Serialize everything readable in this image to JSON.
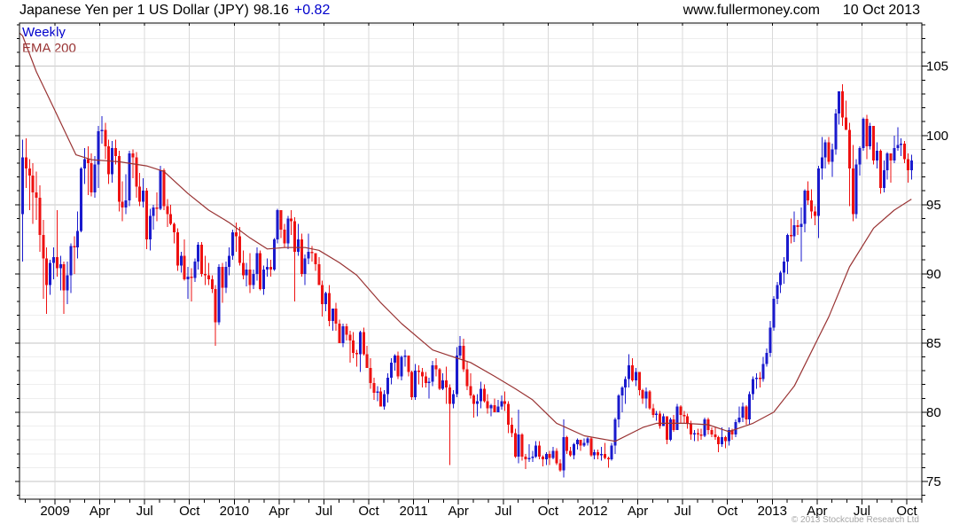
{
  "header": {
    "instrument": "Japanese Yen per 1 US Dollar (JPY)",
    "last_price": "98.16",
    "change": "+0.82",
    "site": "www.fullermoney.com",
    "date": "10 Oct 2013"
  },
  "legend": {
    "timeframe": "Weekly",
    "indicator": "EMA 200"
  },
  "footer": {
    "copyright": "© 2013 Stockcube Research Ltd"
  },
  "colors": {
    "up_candle": "#1a1acd",
    "down_candle": "#ee1111",
    "ema_line": "#993333",
    "change_text": "#0000cc",
    "grid_major": "#c6c6c6",
    "grid_minor": "#eeeeee",
    "grid_vertical": "#d9d9d9",
    "axis": "#000000",
    "copyright_gray": "#a6a6a6"
  },
  "chart_data": {
    "type": "candlestick+line",
    "title": "Japanese Yen per 1 US Dollar (JPY)",
    "timeframe": "Weekly",
    "period_start": "late Oct 2008",
    "period_end": "10 Oct 2013",
    "y_axis": {
      "ticks": [
        75,
        80,
        85,
        90,
        95,
        100,
        105
      ],
      "minor_step": 1,
      "range": [
        73.7,
        108.1
      ],
      "side": "right"
    },
    "x_axis": {
      "labels": [
        "2009",
        "Apr",
        "Jul",
        "Oct",
        "2010",
        "Apr",
        "Jul",
        "Oct",
        "2011",
        "Apr",
        "Jul",
        "Oct",
        "2012",
        "Apr",
        "Jul",
        "Oct",
        "2013",
        "Apr",
        "Jul",
        "Oct"
      ]
    },
    "legend_entries": [
      "Weekly",
      "EMA 200"
    ],
    "first_open": 94.3,
    "candles_hlc": [
      [
        99.7,
        90.9,
        98.4
      ],
      [
        99.8,
        96.2,
        97.6
      ],
      [
        98.3,
        94.6,
        97.1
      ],
      [
        98.0,
        93.6,
        95.9
      ],
      [
        97.4,
        93.9,
        95.5
      ],
      [
        96.4,
        91.6,
        92.8
      ],
      [
        93.9,
        88.2,
        91.1
      ],
      [
        91.9,
        87.1,
        89.2
      ],
      [
        91.0,
        88.5,
        90.8
      ],
      [
        91.9,
        89.6,
        91.2
      ],
      [
        94.6,
        89.8,
        90.4
      ],
      [
        91.3,
        88.8,
        90.7
      ],
      [
        90.9,
        87.1,
        88.8
      ],
      [
        90.9,
        87.8,
        89.9
      ],
      [
        92.2,
        88.6,
        92.0
      ],
      [
        92.7,
        90.0,
        91.9
      ],
      [
        94.5,
        91.1,
        93.1
      ],
      [
        97.7,
        93.0,
        97.6
      ],
      [
        99.1,
        96.5,
        98.3
      ],
      [
        99.2,
        95.7,
        98.0
      ],
      [
        98.7,
        95.6,
        95.9
      ],
      [
        98.5,
        95.5,
        97.9
      ],
      [
        100.7,
        96.2,
        100.3
      ],
      [
        101.4,
        99.4,
        100.4
      ],
      [
        100.9,
        98.3,
        99.2
      ],
      [
        99.7,
        96.5,
        97.2
      ],
      [
        99.6,
        96.6,
        99.1
      ],
      [
        99.7,
        97.9,
        98.5
      ],
      [
        98.9,
        94.5,
        95.2
      ],
      [
        96.7,
        93.8,
        94.8
      ],
      [
        97.2,
        94.3,
        95.3
      ],
      [
        98.9,
        94.9,
        98.7
      ],
      [
        99.0,
        96.9,
        98.4
      ],
      [
        98.8,
        95.5,
        96.3
      ],
      [
        97.3,
        94.9,
        95.2
      ],
      [
        96.9,
        94.8,
        96.0
      ],
      [
        96.2,
        91.8,
        92.5
      ],
      [
        94.7,
        91.7,
        94.2
      ],
      [
        95.0,
        93.2,
        94.8
      ],
      [
        95.9,
        93.8,
        94.7
      ],
      [
        97.8,
        94.6,
        97.5
      ],
      [
        97.6,
        94.6,
        94.9
      ],
      [
        95.4,
        93.4,
        94.3
      ],
      [
        95.0,
        93.5,
        93.6
      ],
      [
        93.7,
        92.2,
        93.0
      ],
      [
        93.3,
        90.2,
        90.6
      ],
      [
        91.6,
        90.1,
        91.3
      ],
      [
        92.5,
        89.5,
        89.6
      ],
      [
        90.5,
        88.2,
        89.8
      ],
      [
        90.4,
        88.0,
        89.7
      ],
      [
        91.1,
        89.4,
        90.9
      ],
      [
        92.3,
        90.3,
        92.1
      ],
      [
        92.3,
        89.8,
        90.0
      ],
      [
        91.3,
        89.2,
        89.9
      ],
      [
        90.8,
        89.2,
        89.6
      ],
      [
        89.9,
        88.6,
        88.9
      ],
      [
        89.2,
        84.8,
        86.5
      ],
      [
        90.7,
        86.3,
        90.5
      ],
      [
        90.8,
        87.9,
        89.0
      ],
      [
        90.9,
        88.6,
        90.5
      ],
      [
        91.9,
        89.9,
        91.3
      ],
      [
        93.2,
        91.0,
        93.0
      ],
      [
        93.7,
        91.6,
        92.7
      ],
      [
        93.4,
        90.6,
        90.8
      ],
      [
        91.7,
        89.6,
        89.9
      ],
      [
        90.8,
        89.1,
        90.3
      ],
      [
        91.5,
        88.6,
        89.2
      ],
      [
        90.3,
        88.9,
        90.0
      ],
      [
        91.9,
        89.5,
        91.5
      ],
      [
        91.7,
        88.8,
        88.9
      ],
      [
        90.6,
        88.5,
        90.3
      ],
      [
        91.1,
        89.8,
        90.5
      ],
      [
        91.0,
        89.8,
        90.3
      ],
      [
        92.6,
        90.2,
        92.5
      ],
      [
        94.7,
        92.2,
        94.6
      ],
      [
        94.4,
        92.6,
        93.2
      ],
      [
        93.6,
        91.9,
        92.2
      ],
      [
        94.2,
        91.8,
        94.0
      ],
      [
        94.6,
        92.8,
        93.8
      ],
      [
        94.1,
        88.0,
        91.6
      ],
      [
        93.6,
        91.3,
        92.5
      ],
      [
        92.9,
        89.8,
        90.0
      ],
      [
        91.4,
        89.2,
        91.1
      ],
      [
        92.9,
        90.7,
        91.6
      ],
      [
        92.0,
        90.9,
        91.5
      ],
      [
        91.5,
        90.2,
        90.7
      ],
      [
        91.2,
        89.2,
        89.2
      ],
      [
        89.5,
        86.9,
        87.8
      ],
      [
        88.7,
        87.3,
        88.6
      ],
      [
        89.2,
        86.2,
        86.6
      ],
      [
        87.5,
        85.9,
        87.5
      ],
      [
        87.9,
        85.9,
        86.4
      ],
      [
        86.7,
        85.0,
        85.0
      ],
      [
        86.4,
        84.7,
        86.2
      ],
      [
        86.4,
        85.2,
        85.6
      ],
      [
        85.9,
        83.6,
        85.2
      ],
      [
        85.8,
        83.9,
        84.3
      ],
      [
        84.5,
        83.3,
        84.2
      ],
      [
        85.9,
        82.9,
        85.8
      ],
      [
        86.1,
        84.1,
        84.2
      ],
      [
        84.8,
        83.2,
        83.2
      ],
      [
        83.9,
        81.7,
        82.1
      ],
      [
        82.5,
        80.9,
        81.4
      ],
      [
        81.9,
        80.8,
        81.5
      ],
      [
        81.8,
        80.4,
        80.4
      ],
      [
        81.6,
        80.2,
        81.3
      ],
      [
        82.8,
        80.7,
        82.5
      ],
      [
        83.9,
        82.0,
        83.6
      ],
      [
        84.2,
        83.0,
        84.1
      ],
      [
        84.4,
        82.4,
        82.6
      ],
      [
        84.1,
        82.3,
        84.0
      ],
      [
        84.5,
        83.3,
        84.1
      ],
      [
        84.1,
        82.6,
        82.9
      ],
      [
        83.0,
        80.9,
        81.1
      ],
      [
        83.5,
        80.9,
        83.0
      ],
      [
        83.4,
        82.0,
        82.9
      ],
      [
        83.2,
        81.8,
        82.6
      ],
      [
        82.9,
        81.8,
        82.1
      ],
      [
        82.5,
        81.0,
        82.2
      ],
      [
        83.7,
        81.9,
        83.4
      ],
      [
        83.9,
        82.6,
        83.1
      ],
      [
        83.2,
        81.6,
        81.7
      ],
      [
        82.8,
        81.6,
        82.3
      ],
      [
        83.3,
        80.6,
        81.8
      ],
      [
        82.0,
        76.2,
        80.6
      ],
      [
        81.6,
        80.3,
        81.3
      ],
      [
        84.7,
        81.1,
        84.1
      ],
      [
        85.5,
        83.9,
        84.8
      ],
      [
        85.3,
        82.9,
        83.1
      ],
      [
        83.7,
        81.6,
        81.9
      ],
      [
        82.8,
        81.0,
        81.2
      ],
      [
        81.3,
        79.6,
        80.6
      ],
      [
        81.3,
        79.7,
        80.8
      ],
      [
        82.2,
        80.3,
        81.7
      ],
      [
        82.0,
        80.7,
        80.8
      ],
      [
        81.3,
        79.9,
        80.3
      ],
      [
        80.6,
        79.7,
        80.5
      ],
      [
        81.0,
        80.0,
        80.0
      ],
      [
        80.9,
        80.0,
        80.4
      ],
      [
        81.2,
        80.2,
        80.8
      ],
      [
        81.5,
        80.1,
        80.6
      ],
      [
        80.8,
        78.5,
        79.1
      ],
      [
        79.6,
        78.2,
        78.5
      ],
      [
        78.8,
        76.7,
        76.8
      ],
      [
        80.2,
        76.3,
        78.4
      ],
      [
        78.5,
        76.5,
        76.8
      ],
      [
        77.0,
        75.9,
        76.6
      ],
      [
        77.7,
        76.4,
        76.7
      ],
      [
        77.2,
        76.4,
        76.8
      ],
      [
        77.9,
        76.7,
        77.6
      ],
      [
        77.9,
        76.6,
        76.8
      ],
      [
        76.9,
        76.1,
        76.6
      ],
      [
        77.1,
        76.2,
        77.0
      ],
      [
        77.2,
        76.2,
        76.7
      ],
      [
        77.5,
        76.6,
        77.2
      ],
      [
        77.4,
        76.2,
        76.3
      ],
      [
        76.6,
        75.7,
        75.8
      ],
      [
        79.5,
        75.3,
        78.2
      ],
      [
        78.3,
        77.0,
        77.2
      ],
      [
        77.5,
        76.8,
        76.9
      ],
      [
        77.8,
        76.6,
        77.7
      ],
      [
        78.1,
        77.3,
        78.0
      ],
      [
        77.9,
        77.2,
        77.6
      ],
      [
        78.1,
        77.5,
        77.8
      ],
      [
        78.2,
        77.6,
        78.1
      ],
      [
        78.2,
        76.8,
        76.9
      ],
      [
        77.3,
        76.6,
        77.1
      ],
      [
        77.3,
        76.6,
        76.9
      ],
      [
        77.5,
        76.5,
        77.0
      ],
      [
        77.8,
        76.6,
        76.7
      ],
      [
        76.8,
        76.0,
        76.6
      ],
      [
        77.8,
        76.5,
        77.6
      ],
      [
        79.6,
        77.0,
        79.5
      ],
      [
        81.3,
        78.9,
        81.2
      ],
      [
        81.9,
        80.0,
        81.8
      ],
      [
        82.6,
        80.6,
        82.4
      ],
      [
        84.2,
        81.8,
        83.4
      ],
      [
        83.9,
        82.2,
        82.3
      ],
      [
        83.2,
        81.9,
        82.9
      ],
      [
        82.9,
        81.2,
        81.6
      ],
      [
        81.7,
        80.6,
        81.0
      ],
      [
        81.8,
        80.3,
        81.5
      ],
      [
        81.6,
        80.2,
        80.3
      ],
      [
        80.6,
        79.6,
        79.8
      ],
      [
        80.1,
        79.4,
        79.9
      ],
      [
        80.1,
        78.8,
        79.0
      ],
      [
        79.9,
        79.0,
        79.7
      ],
      [
        79.7,
        77.7,
        78.0
      ],
      [
        79.6,
        77.9,
        79.5
      ],
      [
        79.8,
        78.6,
        78.7
      ],
      [
        80.6,
        78.7,
        80.4
      ],
      [
        80.5,
        79.2,
        79.8
      ],
      [
        80.1,
        79.2,
        79.7
      ],
      [
        79.9,
        78.8,
        79.2
      ],
      [
        79.4,
        78.0,
        78.4
      ],
      [
        78.7,
        77.9,
        78.5
      ],
      [
        78.8,
        77.9,
        78.4
      ],
      [
        78.8,
        78.0,
        78.3
      ],
      [
        79.6,
        78.2,
        79.5
      ],
      [
        79.6,
        78.4,
        78.7
      ],
      [
        78.9,
        78.2,
        78.4
      ],
      [
        78.9,
        78.0,
        78.2
      ],
      [
        78.3,
        77.1,
        77.7
      ],
      [
        78.9,
        77.5,
        78.2
      ],
      [
        78.3,
        77.4,
        77.9
      ],
      [
        78.9,
        77.6,
        78.7
      ],
      [
        78.8,
        78.0,
        78.4
      ],
      [
        79.5,
        78.2,
        79.3
      ],
      [
        80.4,
        79.2,
        79.6
      ],
      [
        80.7,
        79.3,
        80.4
      ],
      [
        80.5,
        79.1,
        79.5
      ],
      [
        81.5,
        79.1,
        81.3
      ],
      [
        82.6,
        80.9,
        82.4
      ],
      [
        82.8,
        81.7,
        82.5
      ],
      [
        82.9,
        81.8,
        82.4
      ],
      [
        84.0,
        82.2,
        83.5
      ],
      [
        84.6,
        83.3,
        84.3
      ],
      [
        86.6,
        84.0,
        86.1
      ],
      [
        88.4,
        85.9,
        88.2
      ],
      [
        89.4,
        87.8,
        89.2
      ],
      [
        90.2,
        88.6,
        90.1
      ],
      [
        91.2,
        89.3,
        90.9
      ],
      [
        92.9,
        90.0,
        92.8
      ],
      [
        94.0,
        92.2,
        92.7
      ],
      [
        94.5,
        92.3,
        93.5
      ],
      [
        93.9,
        92.8,
        93.4
      ],
      [
        94.8,
        90.9,
        93.6
      ],
      [
        96.1,
        93.0,
        96.0
      ],
      [
        96.7,
        95.0,
        95.3
      ],
      [
        96.1,
        94.0,
        94.5
      ],
      [
        94.9,
        93.5,
        94.2
      ],
      [
        97.8,
        92.6,
        97.6
      ],
      [
        99.9,
        96.8,
        98.4
      ],
      [
        99.7,
        97.6,
        99.5
      ],
      [
        99.9,
        97.9,
        98.1
      ],
      [
        99.4,
        97.0,
        99.0
      ],
      [
        101.9,
        98.6,
        101.6
      ],
      [
        103.2,
        100.8,
        103.2
      ],
      [
        103.7,
        100.7,
        101.3
      ],
      [
        102.5,
        100.5,
        100.4
      ],
      [
        100.9,
        94.9,
        97.6
      ],
      [
        99.3,
        93.8,
        94.3
      ],
      [
        98.3,
        94.0,
        97.9
      ],
      [
        99.2,
        97.1,
        99.1
      ],
      [
        101.3,
        98.9,
        101.2
      ],
      [
        101.5,
        98.3,
        99.2
      ],
      [
        100.9,
        99.0,
        100.7
      ],
      [
        100.6,
        97.9,
        98.2
      ],
      [
        99.5,
        97.6,
        98.9
      ],
      [
        99.0,
        95.8,
        96.2
      ],
      [
        98.2,
        95.9,
        97.5
      ],
      [
        98.8,
        96.8,
        98.7
      ],
      [
        98.7,
        96.6,
        98.2
      ],
      [
        100.0,
        98.0,
        99.1
      ],
      [
        100.6,
        98.9,
        99.3
      ],
      [
        99.8,
        98.5,
        99.4
      ],
      [
        99.6,
        98.0,
        98.3
      ],
      [
        98.7,
        96.6,
        97.5
      ],
      [
        98.6,
        96.8,
        98.2
      ]
    ],
    "ema200": [
      [
        -0.9,
        107.4
      ],
      [
        0,
        107.2
      ],
      [
        4,
        104.6
      ],
      [
        9,
        102.0
      ],
      [
        13,
        99.9
      ],
      [
        15.5,
        98.6
      ],
      [
        20,
        98.25
      ],
      [
        28,
        98.1
      ],
      [
        36,
        97.8
      ],
      [
        41,
        97.4
      ],
      [
        48,
        95.8
      ],
      [
        54,
        94.6
      ],
      [
        60,
        93.7
      ],
      [
        66,
        92.6
      ],
      [
        71,
        91.8
      ],
      [
        76,
        91.9
      ],
      [
        82,
        91.9
      ],
      [
        86,
        91.7
      ],
      [
        92,
        90.8
      ],
      [
        97,
        89.9
      ],
      [
        104,
        87.9
      ],
      [
        110,
        86.4
      ],
      [
        119,
        84.5
      ],
      [
        125,
        84.0
      ],
      [
        130,
        83.6
      ],
      [
        137,
        82.6
      ],
      [
        143,
        81.7
      ],
      [
        148,
        80.9
      ],
      [
        155,
        79.2
      ],
      [
        163,
        78.3
      ],
      [
        172,
        77.9
      ],
      [
        180,
        78.9
      ],
      [
        184,
        79.2
      ],
      [
        192,
        79.2
      ],
      [
        199,
        79.1
      ],
      [
        205,
        78.6
      ],
      [
        212,
        79.2
      ],
      [
        218,
        80.0
      ],
      [
        224,
        81.9
      ],
      [
        229,
        84.4
      ],
      [
        234,
        86.9
      ],
      [
        240,
        90.5
      ],
      [
        247,
        93.3
      ],
      [
        253,
        94.6
      ],
      [
        258,
        95.4
      ]
    ]
  }
}
